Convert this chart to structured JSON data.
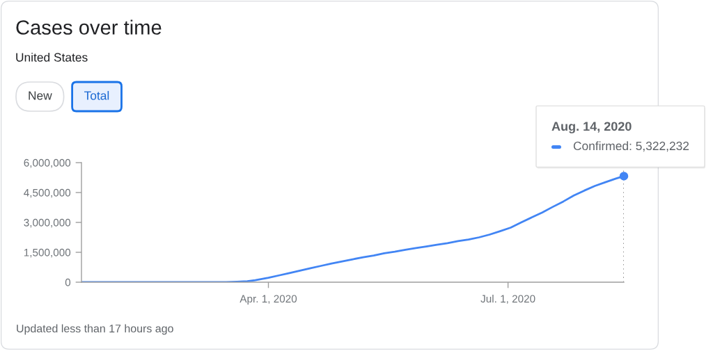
{
  "chart_data": {
    "type": "line",
    "title": "Cases over time",
    "subtitle": "United States",
    "x": [
      "2020-01-21",
      "2020-02-01",
      "2020-02-15",
      "2020-03-01",
      "2020-03-10",
      "2020-03-16",
      "2020-03-20",
      "2020-03-24",
      "2020-03-27",
      "2020-04-01",
      "2020-04-05",
      "2020-04-09",
      "2020-04-13",
      "2020-04-17",
      "2020-04-21",
      "2020-04-25",
      "2020-04-29",
      "2020-05-03",
      "2020-05-07",
      "2020-05-11",
      "2020-05-15",
      "2020-05-19",
      "2020-05-23",
      "2020-05-27",
      "2020-05-31",
      "2020-06-04",
      "2020-06-08",
      "2020-06-12",
      "2020-06-16",
      "2020-06-20",
      "2020-06-24",
      "2020-06-28",
      "2020-07-02",
      "2020-07-06",
      "2020-07-10",
      "2020-07-14",
      "2020-07-18",
      "2020-07-22",
      "2020-07-26",
      "2020-07-30",
      "2020-08-03",
      "2020-08-07",
      "2020-08-11",
      "2020-08-14"
    ],
    "series": [
      {
        "color": "#4285f4",
        "values": [
          0,
          0,
          0,
          0,
          0,
          0,
          20000,
          50000,
          100000,
          220000,
          340000,
          460000,
          580000,
          700000,
          820000,
          940000,
          1040000,
          1150000,
          1250000,
          1340000,
          1450000,
          1530000,
          1630000,
          1710000,
          1790000,
          1880000,
          1960000,
          2060000,
          2140000,
          2250000,
          2390000,
          2560000,
          2740000,
          3000000,
          3250000,
          3500000,
          3780000,
          4050000,
          4350000,
          4600000,
          4830000,
          5020000,
          5200000,
          5322232
        ]
      }
    ],
    "xlim": [
      "2020-01-21",
      "2020-08-14"
    ],
    "xticks": [
      {
        "value": "2020-04-01",
        "label": "Apr. 1, 2020"
      },
      {
        "value": "2020-07-01",
        "label": "Jul. 1, 2020"
      }
    ],
    "ylim": [
      0,
      6000000
    ],
    "yticks": [
      0,
      {
        "value": 1500000,
        "label": "1,500,000"
      },
      {
        "value": 3000000,
        "label": "3,000,000"
      },
      {
        "value": 4500000,
        "label": "4,500,000"
      },
      {
        "value": 6000000,
        "label": "6,000,000"
      }
    ],
    "grid": false,
    "line_style": "solid",
    "ref_lines": [
      {
        "axis": "x",
        "value": "2020-08-14",
        "color": "#757575",
        "line_style": "dotted"
      }
    ],
    "annotations": [
      "New",
      "Total",
      "Aug. 14, 2020",
      {
        "text": "Confirmed: 5,322,232",
        "x": "2020-08-14",
        "y": 5322232
      },
      "Updated less than 17 hours ago"
    ]
  }
}
